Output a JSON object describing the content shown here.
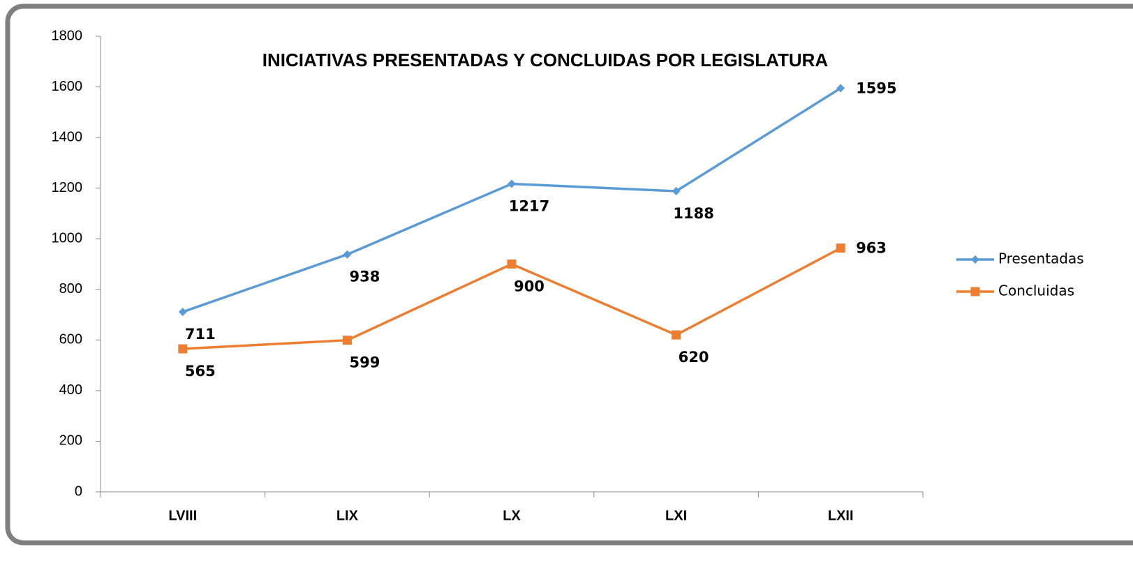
{
  "chart_data": {
    "type": "line",
    "title": "INICIATIVAS PRESENTADAS Y CONCLUIDAS POR LEGISLATURA",
    "categories": [
      "LVIII",
      "LIX",
      "LX",
      "LXI",
      "LXII"
    ],
    "series": [
      {
        "name": "Presentadas",
        "color": "#5b9bd5",
        "marker": "diamond",
        "values": [
          711,
          938,
          1217,
          1188,
          1595
        ]
      },
      {
        "name": "Concluidas",
        "color": "#ed7d31",
        "marker": "square",
        "values": [
          565,
          599,
          900,
          620,
          963
        ]
      }
    ],
    "ylim": [
      0,
      1800
    ],
    "yticks": [
      0,
      200,
      400,
      600,
      800,
      1000,
      1200,
      1400,
      1600,
      1800
    ],
    "grid": false,
    "legend": "right"
  }
}
